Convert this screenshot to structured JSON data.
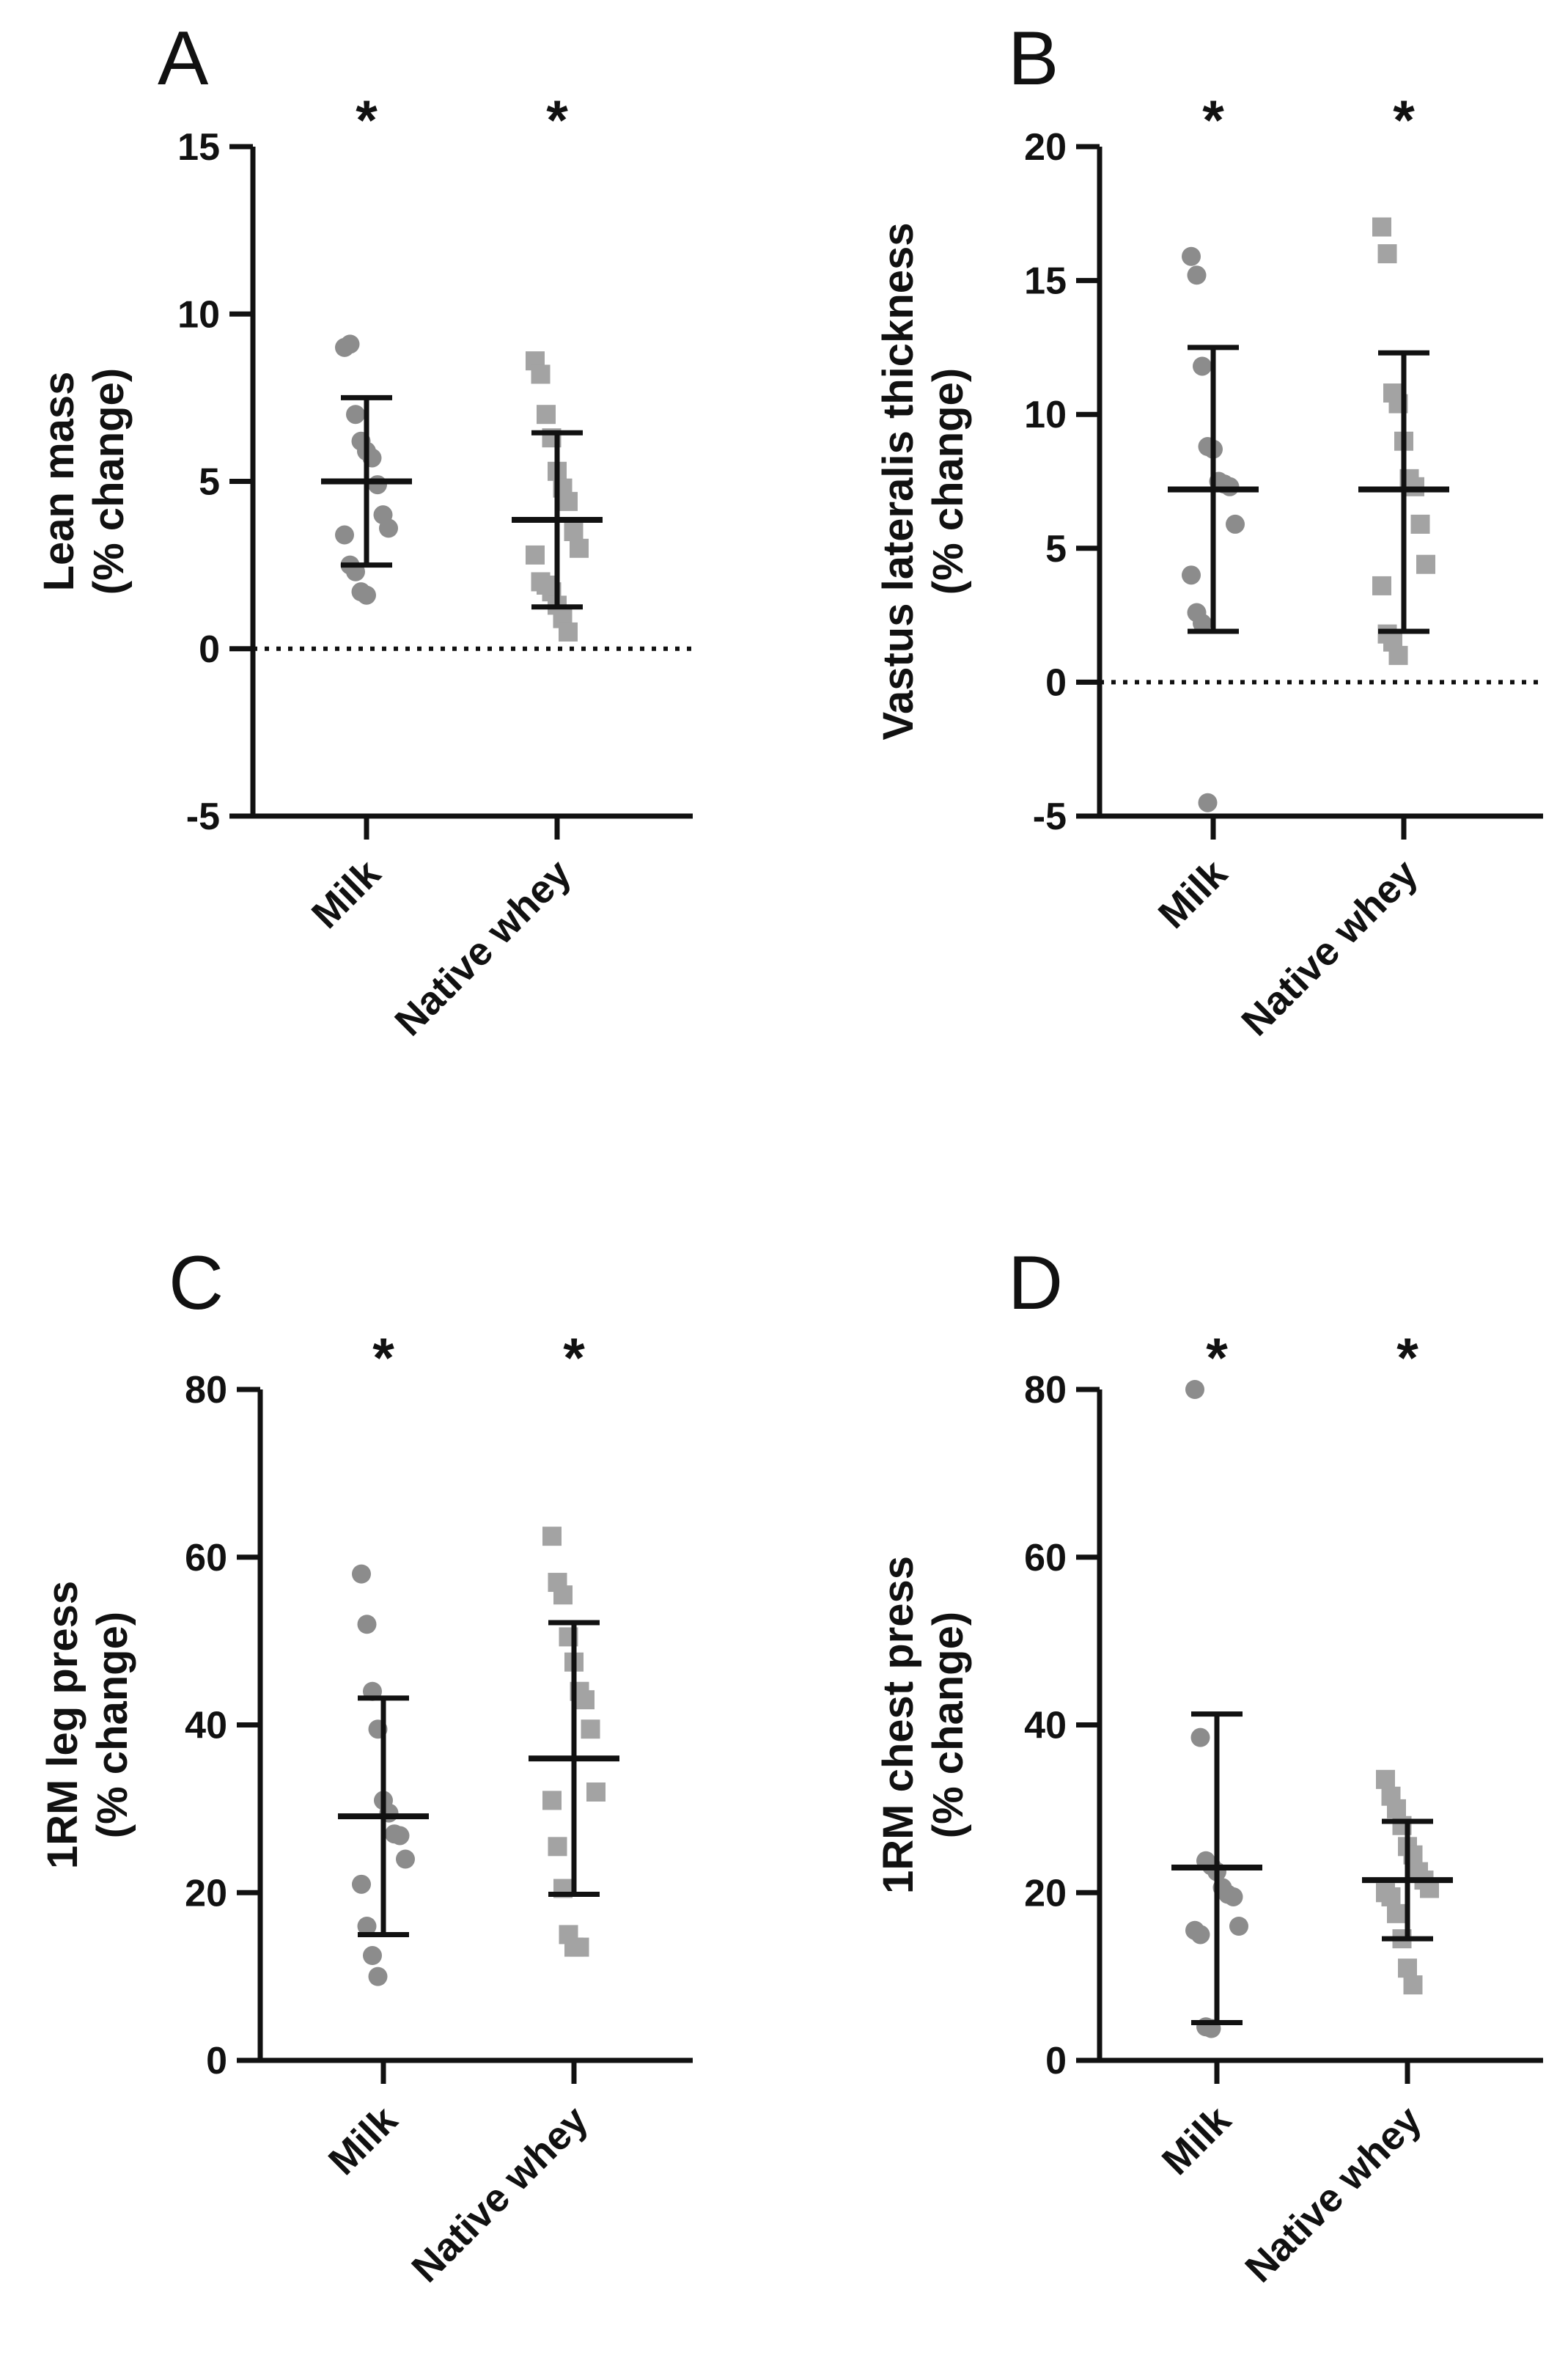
{
  "chart_data": [
    {
      "type": "scatter",
      "panel": "A",
      "ylabel_line1": "Lean mass",
      "ylabel_line2": "(% change)",
      "categories": [
        "Milk",
        "Native whey"
      ],
      "ylim": [
        -5,
        15
      ],
      "yticks": [
        -5,
        0,
        5,
        10,
        15
      ],
      "zero_line": true,
      "significance": [
        "*",
        "*"
      ],
      "series": [
        {
          "name": "Milk",
          "marker": "circle",
          "color": "#8c8c8c",
          "values": [
            9.0,
            9.1,
            7.0,
            6.2,
            5.9,
            5.7,
            4.9,
            4.0,
            3.6,
            3.4,
            2.5,
            2.3,
            1.7,
            1.6
          ],
          "mean": 5.0,
          "sd_low": 2.5,
          "sd_high": 7.5
        },
        {
          "name": "Native whey",
          "marker": "square",
          "color": "#a3a3a3",
          "values": [
            8.6,
            8.2,
            7.0,
            6.3,
            5.3,
            4.8,
            4.4,
            3.5,
            3.0,
            2.8,
            2.0,
            1.9,
            1.7,
            1.3,
            0.9,
            0.5
          ],
          "mean": 3.85,
          "sd_low": 1.25,
          "sd_high": 6.45
        }
      ]
    },
    {
      "type": "scatter",
      "panel": "B",
      "ylabel_line1": "Vastus lateralis thickness",
      "ylabel_line2": "(% change)",
      "categories": [
        "Milk",
        "Native whey"
      ],
      "ylim": [
        -5,
        20
      ],
      "yticks": [
        -5,
        0,
        5,
        10,
        15,
        20
      ],
      "zero_line": true,
      "significance": [
        "*",
        "*"
      ],
      "series": [
        {
          "name": "Milk",
          "marker": "circle",
          "color": "#8c8c8c",
          "values": [
            15.9,
            15.2,
            11.8,
            8.8,
            8.7,
            7.5,
            7.4,
            7.3,
            5.9,
            4.0,
            2.6,
            2.2,
            -4.5
          ],
          "mean": 7.2,
          "sd_low": 1.9,
          "sd_high": 12.5
        },
        {
          "name": "Native whey",
          "marker": "square",
          "color": "#a3a3a3",
          "values": [
            17.0,
            16.0,
            10.8,
            10.4,
            9.0,
            7.6,
            7.3,
            5.9,
            4.4,
            3.6,
            1.8,
            1.5,
            1.0
          ],
          "mean": 7.2,
          "sd_low": 1.9,
          "sd_high": 12.3
        }
      ]
    },
    {
      "type": "scatter",
      "panel": "C",
      "ylabel_line1": "1RM leg press",
      "ylabel_line2": "(% change)",
      "categories": [
        "Milk",
        "Native whey"
      ],
      "ylim": [
        0,
        80
      ],
      "yticks": [
        0,
        20,
        40,
        60,
        80
      ],
      "zero_line": false,
      "significance": [
        "*",
        "*"
      ],
      "series": [
        {
          "name": "Milk",
          "marker": "circle",
          "color": "#8c8c8c",
          "values": [
            58.0,
            52.0,
            44.0,
            39.5,
            31.0,
            29.5,
            27.0,
            26.8,
            24.0,
            21.0,
            16.0,
            12.5,
            10.0
          ],
          "mean": 29.1,
          "sd_low": 15.0,
          "sd_high": 43.2
        },
        {
          "name": "Native whey",
          "marker": "square",
          "color": "#a3a3a3",
          "values": [
            62.5,
            57.0,
            55.5,
            50.5,
            47.5,
            44.0,
            43.0,
            39.5,
            32.0,
            31.0,
            25.5,
            20.5,
            15.0,
            13.5,
            13.5
          ],
          "mean": 36.0,
          "sd_low": 19.8,
          "sd_high": 52.2
        }
      ]
    },
    {
      "type": "scatter",
      "panel": "D",
      "ylabel_line1": "1RM chest press",
      "ylabel_line2": "(% change)",
      "categories": [
        "Milk",
        "Native whey"
      ],
      "ylim": [
        0,
        80
      ],
      "yticks": [
        0,
        20,
        40,
        60,
        80
      ],
      "zero_line": false,
      "significance": [
        "*",
        "*"
      ],
      "series": [
        {
          "name": "Milk",
          "marker": "circle",
          "color": "#8c8c8c",
          "values": [
            80.0,
            38.5,
            23.8,
            23.2,
            22.5,
            20.6,
            19.8,
            19.5,
            16.0,
            15.5,
            15.0,
            4.0,
            3.8
          ],
          "mean": 23.0,
          "sd_low": 4.5,
          "sd_high": 41.3
        },
        {
          "name": "Native whey",
          "marker": "square",
          "color": "#a3a3a3",
          "values": [
            33.5,
            31.5,
            30.0,
            28.0,
            25.5,
            24.5,
            22.5,
            21.5,
            20.5,
            20.0,
            19.5,
            17.5,
            14.5,
            11.0,
            9.0
          ],
          "mean": 21.5,
          "sd_low": 14.5,
          "sd_high": 28.5
        }
      ]
    }
  ]
}
